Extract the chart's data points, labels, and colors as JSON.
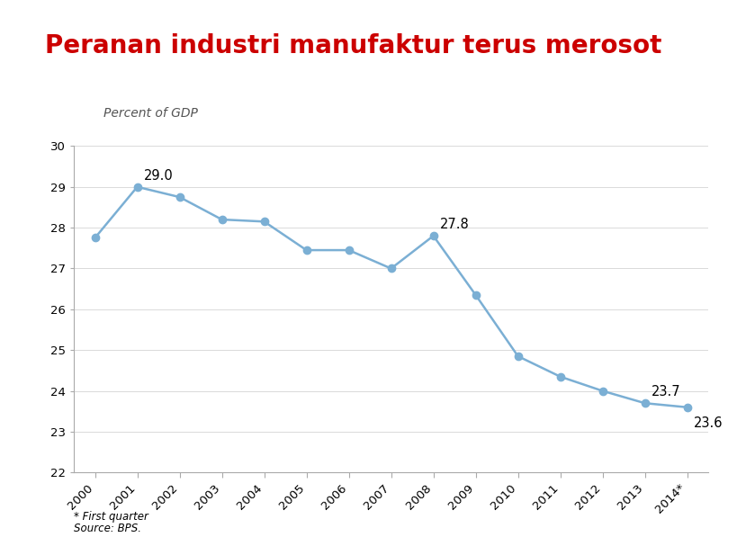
{
  "title": "Peranan industri manufaktur terus merosot",
  "ylabel": "Percent of GDP",
  "years": [
    "2000",
    "2001",
    "2002",
    "2003",
    "2004",
    "2005",
    "2006",
    "2007",
    "2008",
    "2009",
    "2010",
    "2011",
    "2012",
    "2013",
    "2014*"
  ],
  "values": [
    27.75,
    29.0,
    28.75,
    28.2,
    28.15,
    27.45,
    27.45,
    27.0,
    27.8,
    26.35,
    24.85,
    24.35,
    24.0,
    23.7,
    23.6
  ],
  "annotations": [
    {
      "index": 1,
      "text": "29.0",
      "xoffset": 0.15,
      "yoffset": 0.18
    },
    {
      "index": 8,
      "text": "27.8",
      "xoffset": 0.15,
      "yoffset": 0.18
    },
    {
      "index": 13,
      "text": "23.7",
      "xoffset": 0.15,
      "yoffset": 0.18
    },
    {
      "index": 14,
      "text": "23.6",
      "xoffset": 0.15,
      "yoffset": -0.5
    }
  ],
  "ylim": [
    22,
    30
  ],
  "yticks": [
    22,
    23,
    24,
    25,
    26,
    27,
    28,
    29,
    30
  ],
  "line_color": "#7bafd4",
  "marker_color": "#7bafd4",
  "title_color": "#cc0000",
  "red_bar_color": "#cc0000",
  "red_line_color": "#cc0000",
  "footnote_line1": "* First quarter",
  "footnote_line2": "Source: BPS.",
  "bg_color": "#ffffff",
  "plot_bg_color": "#ffffff",
  "border_color": "#aaaaaa",
  "grid_color": "#cccccc"
}
